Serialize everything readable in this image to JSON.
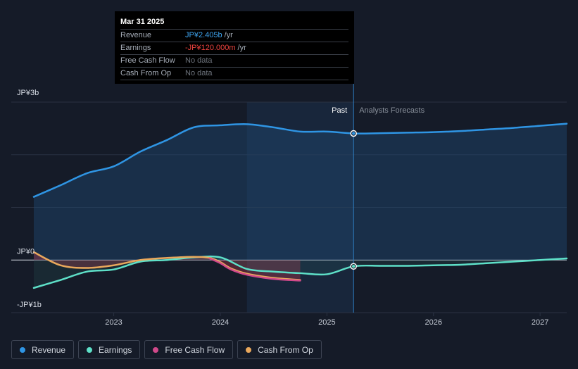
{
  "tooltip": {
    "date": "Mar 31 2025",
    "rows": [
      {
        "label": "Revenue",
        "value": "JP¥2.405b",
        "unit": "/yr",
        "color": "#3ea4ef"
      },
      {
        "label": "Earnings",
        "value": "-JP¥120.000m",
        "unit": "/yr",
        "color": "#f0443f"
      },
      {
        "label": "Free Cash Flow",
        "value": "No data",
        "unit": "",
        "color": "#6d737c"
      },
      {
        "label": "Cash From Op",
        "value": "No data",
        "unit": "",
        "color": "#6d737c"
      }
    ]
  },
  "legend": [
    {
      "label": "Revenue",
      "color": "#2f95e4"
    },
    {
      "label": "Earnings",
      "color": "#5ee0c8"
    },
    {
      "label": "Free Cash Flow",
      "color": "#d0498a"
    },
    {
      "label": "Cash From Op",
      "color": "#e9a85c"
    }
  ],
  "chart_data": {
    "type": "line",
    "title": "",
    "y_unit": "JP¥ billions",
    "ylim": [
      -1,
      3
    ],
    "y_tick_labels": [
      {
        "value": 3,
        "label": "JP¥3b"
      },
      {
        "value": 0,
        "label": "JP¥0"
      },
      {
        "value": -1,
        "label": "-JP¥1b"
      }
    ],
    "xlim": [
      2022.28,
      2027.25
    ],
    "x_tick_labels": [
      {
        "value": 2023,
        "label": "2023"
      },
      {
        "value": 2024,
        "label": "2024"
      },
      {
        "value": 2025,
        "label": "2025"
      },
      {
        "value": 2026,
        "label": "2026"
      },
      {
        "value": 2027,
        "label": "2027"
      }
    ],
    "past_label": "Past",
    "forecast_label": "Analysts Forecasts",
    "past_region_start": 2024.25,
    "divider_x": 2025.25,
    "series": [
      {
        "name": "Revenue",
        "color": "#2f95e4",
        "x": [
          2022.25,
          2022.5,
          2022.75,
          2023.0,
          2023.25,
          2023.5,
          2023.75,
          2024.0,
          2024.25,
          2024.5,
          2024.75,
          2025.0,
          2025.25,
          2025.5,
          2025.75,
          2026.0,
          2026.25,
          2026.5,
          2026.75,
          2027.0,
          2027.25
        ],
        "y": [
          1.2,
          1.42,
          1.65,
          1.78,
          2.06,
          2.28,
          2.52,
          2.56,
          2.58,
          2.52,
          2.44,
          2.44,
          2.405,
          2.41,
          2.42,
          2.43,
          2.45,
          2.48,
          2.51,
          2.55,
          2.59
        ]
      },
      {
        "name": "Earnings",
        "color": "#5ee0c8",
        "x": [
          2022.25,
          2022.5,
          2022.75,
          2023.0,
          2023.25,
          2023.5,
          2023.75,
          2024.0,
          2024.25,
          2024.5,
          2024.75,
          2025.0,
          2025.25,
          2025.5,
          2025.75,
          2026.0,
          2026.25,
          2026.5,
          2026.75,
          2027.0,
          2027.25
        ],
        "y": [
          -0.53,
          -0.38,
          -0.22,
          -0.18,
          -0.03,
          0.0,
          0.05,
          0.05,
          -0.17,
          -0.22,
          -0.25,
          -0.27,
          -0.12,
          -0.11,
          -0.11,
          -0.1,
          -0.09,
          -0.06,
          -0.03,
          0.0,
          0.03
        ]
      },
      {
        "name": "Free Cash Flow",
        "color": "#d0498a",
        "x": [
          2023.9,
          2024.0,
          2024.1,
          2024.25,
          2024.5,
          2024.75
        ],
        "y": [
          0.03,
          -0.06,
          -0.18,
          -0.28,
          -0.36,
          -0.39
        ]
      },
      {
        "name": "Cash From Op",
        "color": "#e9a85c",
        "x": [
          2022.25,
          2022.5,
          2022.75,
          2023.0,
          2023.25,
          2023.5,
          2023.75,
          2023.9,
          2024.0,
          2024.1,
          2024.25,
          2024.5,
          2024.75
        ],
        "y": [
          0.15,
          -0.1,
          -0.15,
          -0.1,
          0.0,
          0.04,
          0.06,
          0.04,
          -0.04,
          -0.16,
          -0.26,
          -0.34,
          -0.38
        ]
      }
    ],
    "highlight": {
      "x": 2025.25,
      "points": [
        {
          "series": "Revenue",
          "y": 2.405
        },
        {
          "series": "Earnings",
          "y": -0.12
        }
      ]
    }
  }
}
